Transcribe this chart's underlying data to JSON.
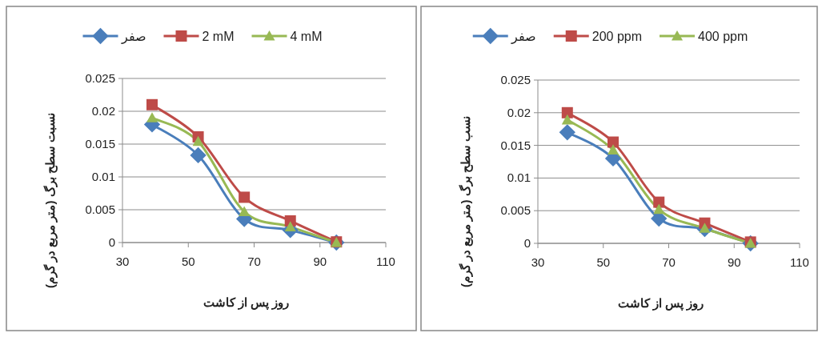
{
  "chart_data": [
    {
      "type": "line",
      "xlabel": "روز پس از کاشت",
      "ylabel": "نسبت سطح برگ (متر مربع در گرم)",
      "x": [
        39,
        53,
        67,
        81,
        95
      ],
      "xlim": [
        30,
        110
      ],
      "xticks": [
        30,
        50,
        70,
        90,
        110
      ],
      "ylim": [
        0,
        0.025
      ],
      "yticks": [
        0,
        0.005,
        0.01,
        0.015,
        0.02,
        0.025
      ],
      "grid": "y",
      "legend": "top",
      "series": [
        {
          "name": "صفر",
          "color": "#4a7ebb",
          "marker": "diamond",
          "values": [
            0.018,
            0.0133,
            0.0036,
            0.0019,
            0
          ]
        },
        {
          "name": "2 mM",
          "color": "#be4b48",
          "marker": "square",
          "values": [
            0.021,
            0.0161,
            0.0069,
            0.0033,
            0.0001
          ]
        },
        {
          "name": "4 mM",
          "color": "#98b954",
          "marker": "triangle",
          "values": [
            0.019,
            0.0154,
            0.0047,
            0.0024,
            0
          ]
        }
      ]
    },
    {
      "type": "line",
      "xlabel": "روز پس از کاشت",
      "ylabel": "نسب سطح برگ (متر مربع در گرم)",
      "x": [
        39,
        53,
        67,
        81,
        95
      ],
      "xlim": [
        30,
        110
      ],
      "xticks": [
        30,
        50,
        70,
        90,
        110
      ],
      "ylim": [
        0,
        0.025
      ],
      "yticks": [
        0,
        0.005,
        0.01,
        0.015,
        0.02,
        0.025
      ],
      "grid": "y",
      "legend": "top",
      "series": [
        {
          "name": "صفر",
          "color": "#4a7ebb",
          "marker": "diamond",
          "values": [
            0.017,
            0.013,
            0.0038,
            0.0022,
            0
          ]
        },
        {
          "name": "200 ppm",
          "color": "#be4b48",
          "marker": "square",
          "values": [
            0.02,
            0.0155,
            0.0063,
            0.0031,
            0.0002
          ]
        },
        {
          "name": "400 ppm",
          "color": "#98b954",
          "marker": "triangle",
          "values": [
            0.0189,
            0.0143,
            0.0052,
            0.0023,
            0
          ]
        }
      ]
    }
  ]
}
